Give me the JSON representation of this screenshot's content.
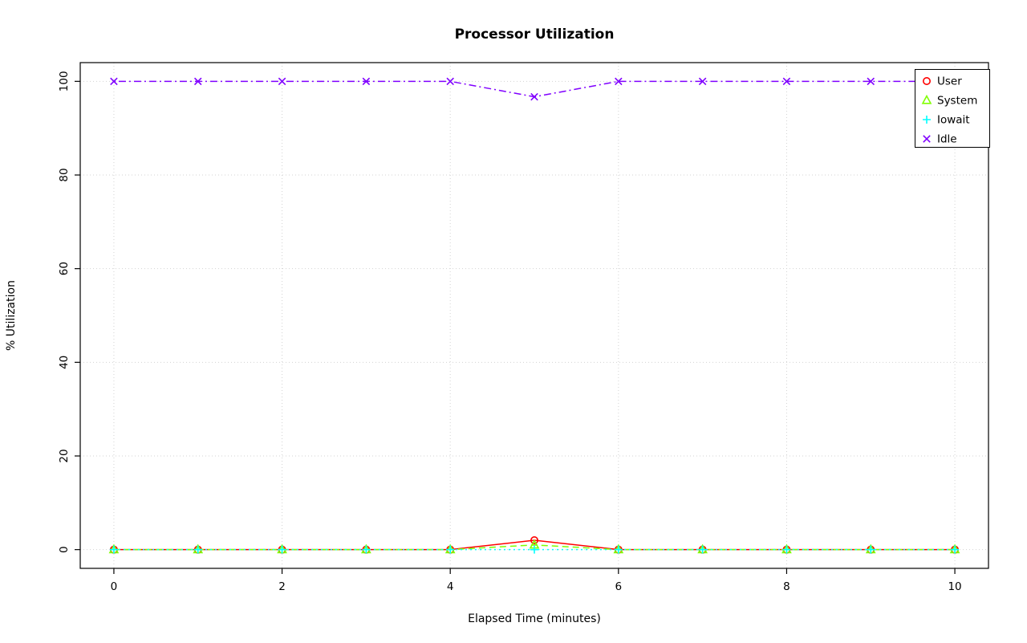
{
  "chart_data": {
    "type": "line",
    "title": "Processor Utilization",
    "xlabel": "Elapsed Time (minutes)",
    "ylabel": "% Utilization",
    "x": [
      0,
      1,
      2,
      3,
      4,
      5,
      6,
      7,
      8,
      9,
      10
    ],
    "xticks": [
      0,
      2,
      4,
      6,
      8,
      10
    ],
    "yticks": [
      0,
      20,
      40,
      60,
      80,
      100
    ],
    "xlim": [
      0,
      10
    ],
    "ylim": [
      0,
      100
    ],
    "grid": true,
    "grid_color": "#d3d3d3",
    "axis_color": "#000000",
    "legend_position": "top-right",
    "series": [
      {
        "name": "User",
        "color": "#ff0000",
        "marker": "circle",
        "dash": "solid",
        "values": [
          0,
          0,
          0,
          0,
          0,
          2,
          0,
          0,
          0,
          0,
          0
        ]
      },
      {
        "name": "System",
        "color": "#80ff00",
        "marker": "triangle",
        "dash": "dashed",
        "values": [
          0,
          0,
          0,
          0,
          0,
          1,
          0,
          0,
          0,
          0,
          0
        ]
      },
      {
        "name": "Iowait",
        "color": "#00ffff",
        "marker": "plus",
        "dash": "dotted",
        "values": [
          0,
          0,
          0,
          0,
          0,
          0,
          0,
          0,
          0,
          0,
          0
        ]
      },
      {
        "name": "Idle",
        "color": "#8000ff",
        "marker": "x",
        "dash": "dotdash",
        "values": [
          100,
          100,
          100,
          100,
          100,
          96.7,
          100,
          100,
          100,
          100,
          100
        ]
      }
    ]
  }
}
